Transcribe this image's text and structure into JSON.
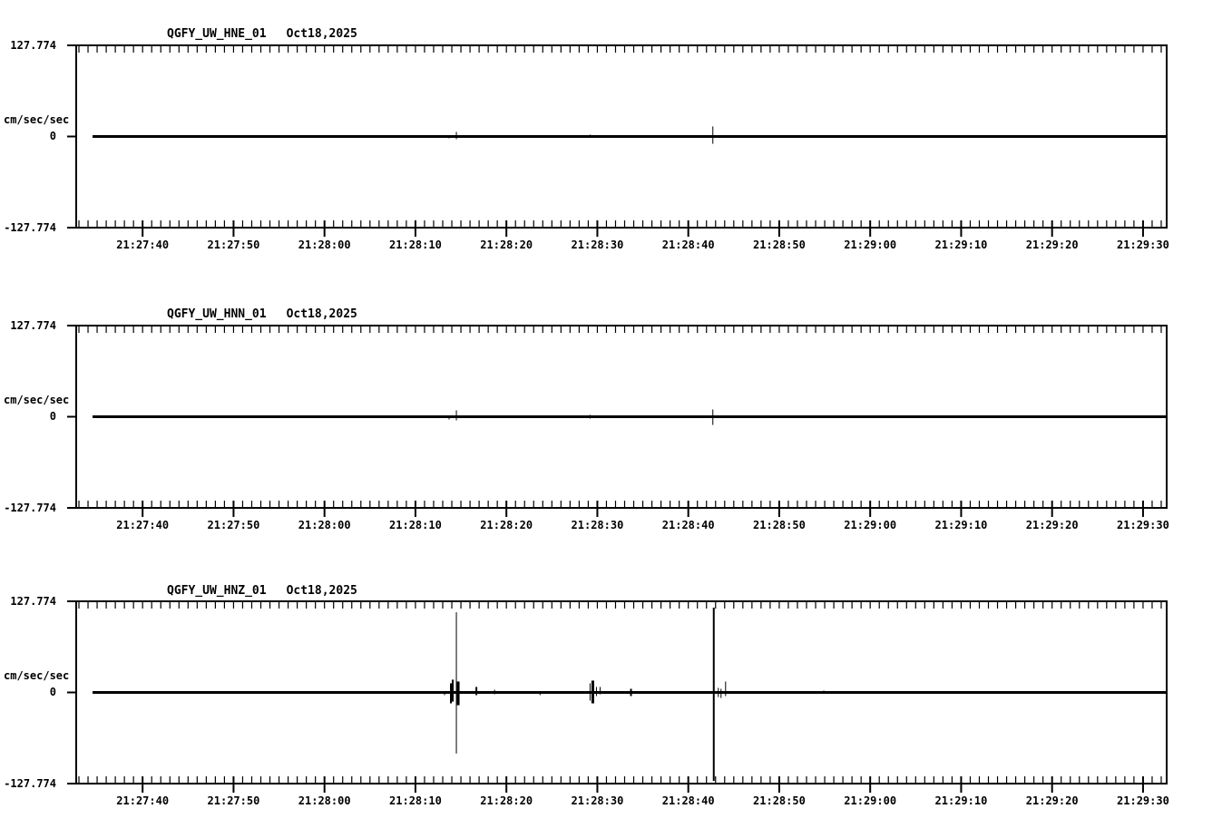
{
  "page": {
    "background": "#ffffff",
    "foreground": "#000000"
  },
  "chart_data": [
    {
      "type": "line",
      "channel": "HNE",
      "title": "QGFY_UW_HNE_01",
      "date_label": "Oct18,2025",
      "ylabel": "cm/sec/sec",
      "ylim": [
        -127.774,
        127.774
      ],
      "yticks": [
        {
          "value": 127.774,
          "label": "127.774"
        },
        {
          "value": 0,
          "label": "0"
        },
        {
          "value": -127.774,
          "label": "-127.774"
        }
      ],
      "x_window": {
        "start": "21:27:32.7",
        "end": "21:29:32.6"
      },
      "xtick_major_interval_sec": 10,
      "xtick_minor_interval_sec": 1,
      "xtick_labels": [
        "21:27:40",
        "21:27:50",
        "21:28:00",
        "21:28:10",
        "21:28:20",
        "21:28:30",
        "21:28:40",
        "21:28:50",
        "21:29:00",
        "21:29:10",
        "21:29:20",
        "21:29:30"
      ],
      "trace_start": "21:27:34.5",
      "baseline_value": 0,
      "spikes": [
        {
          "time": "21:28:13.7",
          "up": 0.0,
          "down": 2.6,
          "w": 1
        },
        {
          "time": "21:28:14.5",
          "up": 6.4,
          "down": 3.8,
          "w": 1
        },
        {
          "time": "21:28:29.2",
          "up": 2.6,
          "down": 1.3,
          "w": 1
        },
        {
          "time": "21:28:42.7",
          "up": 14.1,
          "down": 10.2,
          "w": 1
        },
        {
          "time": "21:28:43.9",
          "up": 1.9,
          "down": 1.9,
          "w": 1
        }
      ]
    },
    {
      "type": "line",
      "channel": "HNN",
      "title": "QGFY_UW_HNN_01",
      "date_label": "Oct18,2025",
      "ylabel": "cm/sec/sec",
      "ylim": [
        -127.774,
        127.774
      ],
      "yticks": [
        {
          "value": 127.774,
          "label": "127.774"
        },
        {
          "value": 0,
          "label": "0"
        },
        {
          "value": -127.774,
          "label": "-127.774"
        }
      ],
      "x_window": {
        "start": "21:27:32.7",
        "end": "21:29:32.6"
      },
      "xtick_major_interval_sec": 10,
      "xtick_minor_interval_sec": 1,
      "xtick_labels": [
        "21:27:40",
        "21:27:50",
        "21:28:00",
        "21:28:10",
        "21:28:20",
        "21:28:30",
        "21:28:40",
        "21:28:50",
        "21:29:00",
        "21:29:10",
        "21:29:20",
        "21:29:30"
      ],
      "trace_start": "21:27:34.5",
      "baseline_value": 0,
      "spikes": [
        {
          "time": "21:28:13.7",
          "up": 0.0,
          "down": 3.8,
          "w": 1
        },
        {
          "time": "21:28:14.5",
          "up": 9.0,
          "down": 5.1,
          "w": 1
        },
        {
          "time": "21:28:29.2",
          "up": 2.6,
          "down": 2.6,
          "w": 1
        },
        {
          "time": "21:28:42.7",
          "up": 10.2,
          "down": 11.5,
          "w": 1
        },
        {
          "time": "21:28:43.9",
          "up": 1.9,
          "down": 1.9,
          "w": 1
        }
      ]
    },
    {
      "type": "line",
      "channel": "HNZ",
      "title": "QGFY_UW_HNZ_01",
      "date_label": "Oct18,2025",
      "ylabel": "cm/sec/sec",
      "ylim": [
        -127.774,
        127.774
      ],
      "yticks": [
        {
          "value": 127.774,
          "label": "127.774"
        },
        {
          "value": 0,
          "label": "0"
        },
        {
          "value": -127.774,
          "label": "-127.774"
        }
      ],
      "x_window": {
        "start": "21:27:32.7",
        "end": "21:29:32.6"
      },
      "xtick_major_interval_sec": 10,
      "xtick_minor_interval_sec": 1,
      "xtick_labels": [
        "21:27:40",
        "21:27:50",
        "21:28:00",
        "21:28:10",
        "21:28:20",
        "21:28:30",
        "21:28:40",
        "21:28:50",
        "21:29:00",
        "21:29:10",
        "21:29:20",
        "21:29:30"
      ],
      "trace_start": "21:27:34.5",
      "baseline_value": 0,
      "spikes": [
        {
          "time": "21:28:13.2",
          "up": 1.3,
          "down": 3.8,
          "w": 1
        },
        {
          "time": "21:28:13.9",
          "up": 12.8,
          "down": 15.3,
          "w": 2
        },
        {
          "time": "21:28:14.1",
          "up": 17.9,
          "down": 12.8,
          "w": 2
        },
        {
          "time": "21:28:14.5",
          "up": 112.4,
          "down": 85.6,
          "w": 1
        },
        {
          "time": "21:28:14.7",
          "up": 15.3,
          "down": 17.9,
          "w": 3
        },
        {
          "time": "21:28:16.7",
          "up": 7.7,
          "down": 3.8,
          "w": 2
        },
        {
          "time": "21:28:18.7",
          "up": 3.8,
          "down": 2.6,
          "w": 1
        },
        {
          "time": "21:28:23.7",
          "up": 1.3,
          "down": 3.8,
          "w": 1
        },
        {
          "time": "21:28:29.2",
          "up": 12.8,
          "down": 11.5,
          "w": 1
        },
        {
          "time": "21:28:29.5",
          "up": 16.6,
          "down": 15.3,
          "w": 3
        },
        {
          "time": "21:28:29.9",
          "up": 7.7,
          "down": 5.1,
          "w": 1
        },
        {
          "time": "21:28:30.3",
          "up": 7.7,
          "down": 2.6,
          "w": 1
        },
        {
          "time": "21:28:33.7",
          "up": 5.1,
          "down": 5.1,
          "w": 2
        },
        {
          "time": "21:28:42.8",
          "up": 118.8,
          "down": 123.9,
          "w": 2
        },
        {
          "time": "21:28:43.3",
          "up": 6.4,
          "down": 6.4,
          "w": 1
        },
        {
          "time": "21:28:43.6",
          "up": 5.1,
          "down": 7.7,
          "w": 1
        },
        {
          "time": "21:28:44.1",
          "up": 15.3,
          "down": 5.1,
          "w": 1
        },
        {
          "time": "21:28:54.9",
          "up": 2.6,
          "down": 0.0,
          "w": 1
        }
      ]
    }
  ]
}
